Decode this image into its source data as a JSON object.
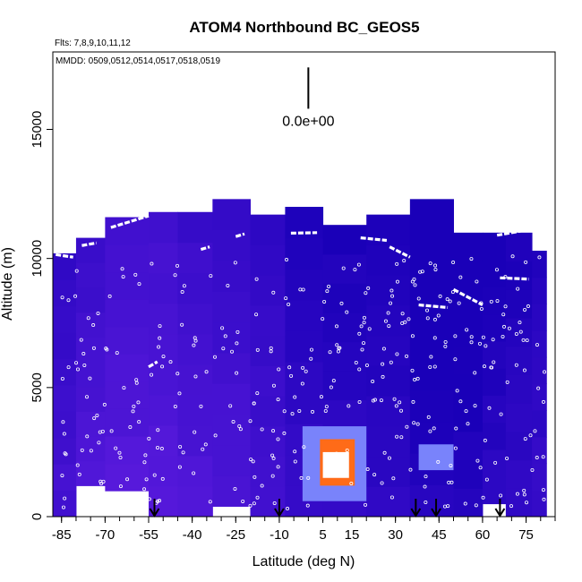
{
  "chart_data": {
    "type": "heatmap",
    "title": "ATOM4 Northbound BC_GEOS5",
    "flights_label": "Flts: 7,8,9,10,11,12",
    "mmdd_label": "MMDD: 0509,0512,0514,0517,0518,0519",
    "xlabel": "Latitude (deg N)",
    "ylabel": "Altitude (m)",
    "xlim": [
      -88,
      85
    ],
    "ylim": [
      0,
      18000
    ],
    "x_ticks": [
      -85,
      -70,
      -55,
      -40,
      -25,
      -10,
      5,
      15,
      30,
      45,
      60,
      75
    ],
    "x_tick_labels": [
      "-85",
      "-70",
      "-55",
      "-40",
      "-25",
      "-10",
      "5",
      "15",
      "30",
      "45",
      "60",
      "75"
    ],
    "x_minor_step": 5,
    "y_ticks": [
      0,
      5000,
      10000,
      15000
    ],
    "y_tick_labels": [
      "0",
      "5000",
      "10000",
      "15000"
    ],
    "scale_label": "0.0e+00",
    "scale_bar": {
      "x": 0,
      "y_from": 15800,
      "y_to": 17400
    },
    "arrows_latitude": [
      -53,
      -10,
      37,
      44,
      66
    ],
    "colors": {
      "low": "#1a00b8",
      "mid": "#7a28f0",
      "high": "#ff2000",
      "peak": "#ffffff"
    },
    "column_profiles": [
      {
        "x0": -88,
        "x1": -80,
        "top": 10200,
        "base": 0,
        "shade": 0.45
      },
      {
        "x0": -80,
        "x1": -70,
        "top": 10800,
        "base": 1200,
        "shade": 0.55
      },
      {
        "x0": -70,
        "x1": -55,
        "top": 11600,
        "base": 1000,
        "shade": 0.6
      },
      {
        "x0": -55,
        "x1": -45,
        "top": 11800,
        "base": 0,
        "shade": 0.62
      },
      {
        "x0": -45,
        "x1": -33,
        "top": 11800,
        "base": 0,
        "shade": 0.55
      },
      {
        "x0": -33,
        "x1": -20,
        "top": 12300,
        "base": 400,
        "shade": 0.5
      },
      {
        "x0": -20,
        "x1": -8,
        "top": 11700,
        "base": 0,
        "shade": 0.42
      },
      {
        "x0": -8,
        "x1": 5,
        "top": 12000,
        "base": 0,
        "shade": 0.28
      },
      {
        "x0": 5,
        "x1": 20,
        "top": 11300,
        "base": 0,
        "shade": 0.25
      },
      {
        "x0": 20,
        "x1": 35,
        "top": 11700,
        "base": 0,
        "shade": 0.22
      },
      {
        "x0": 35,
        "x1": 50,
        "top": 12300,
        "base": 0,
        "shade": 0.12
      },
      {
        "x0": 50,
        "x1": 60,
        "top": 11000,
        "base": 0,
        "shade": 0.1
      },
      {
        "x0": 60,
        "x1": 68,
        "top": 11000,
        "base": 500,
        "shade": 0.18
      },
      {
        "x0": 68,
        "x1": 77,
        "top": 11000,
        "base": 0,
        "shade": 0.25
      },
      {
        "x0": 77,
        "x1": 82,
        "top": 10300,
        "base": 0,
        "shade": 0.3
      }
    ],
    "hotspot": [
      {
        "x0": -2,
        "x1": 20,
        "y0": 600,
        "y1": 3500,
        "level": 0.55
      },
      {
        "x0": 4,
        "x1": 16,
        "y0": 1200,
        "y1": 3000,
        "level": 0.85
      },
      {
        "x0": 5,
        "x1": 14,
        "y0": 1500,
        "y1": 2500,
        "level": 1.0
      },
      {
        "x0": 38,
        "x1": 50,
        "y0": 1800,
        "y1": 2800,
        "level": 0.45
      }
    ],
    "flight_tracks": [
      {
        "x": [
          -87,
          -81
        ],
        "y": [
          10150,
          10050
        ]
      },
      {
        "x": [
          -78,
          -73
        ],
        "y": [
          10500,
          10600
        ]
      },
      {
        "x": [
          -68,
          -55
        ],
        "y": [
          11200,
          11650
        ]
      },
      {
        "x": [
          -37,
          -34
        ],
        "y": [
          10350,
          10450
        ]
      },
      {
        "x": [
          -25,
          -22
        ],
        "y": [
          10850,
          10950
        ]
      },
      {
        "x": [
          -6,
          3
        ],
        "y": [
          10980,
          11000
        ]
      },
      {
        "x": [
          18,
          27
        ],
        "y": [
          10800,
          10700
        ]
      },
      {
        "x": [
          28,
          35
        ],
        "y": [
          10450,
          10050
        ]
      },
      {
        "x": [
          50,
          60
        ],
        "y": [
          8800,
          8200
        ]
      },
      {
        "x": [
          38,
          48
        ],
        "y": [
          8200,
          8100
        ]
      },
      {
        "x": [
          65,
          75
        ],
        "y": [
          10900,
          11100
        ]
      },
      {
        "x": [
          66,
          76
        ],
        "y": [
          9250,
          9200
        ]
      },
      {
        "x": [
          -55,
          -52
        ],
        "y": [
          5800,
          6000
        ]
      }
    ]
  }
}
